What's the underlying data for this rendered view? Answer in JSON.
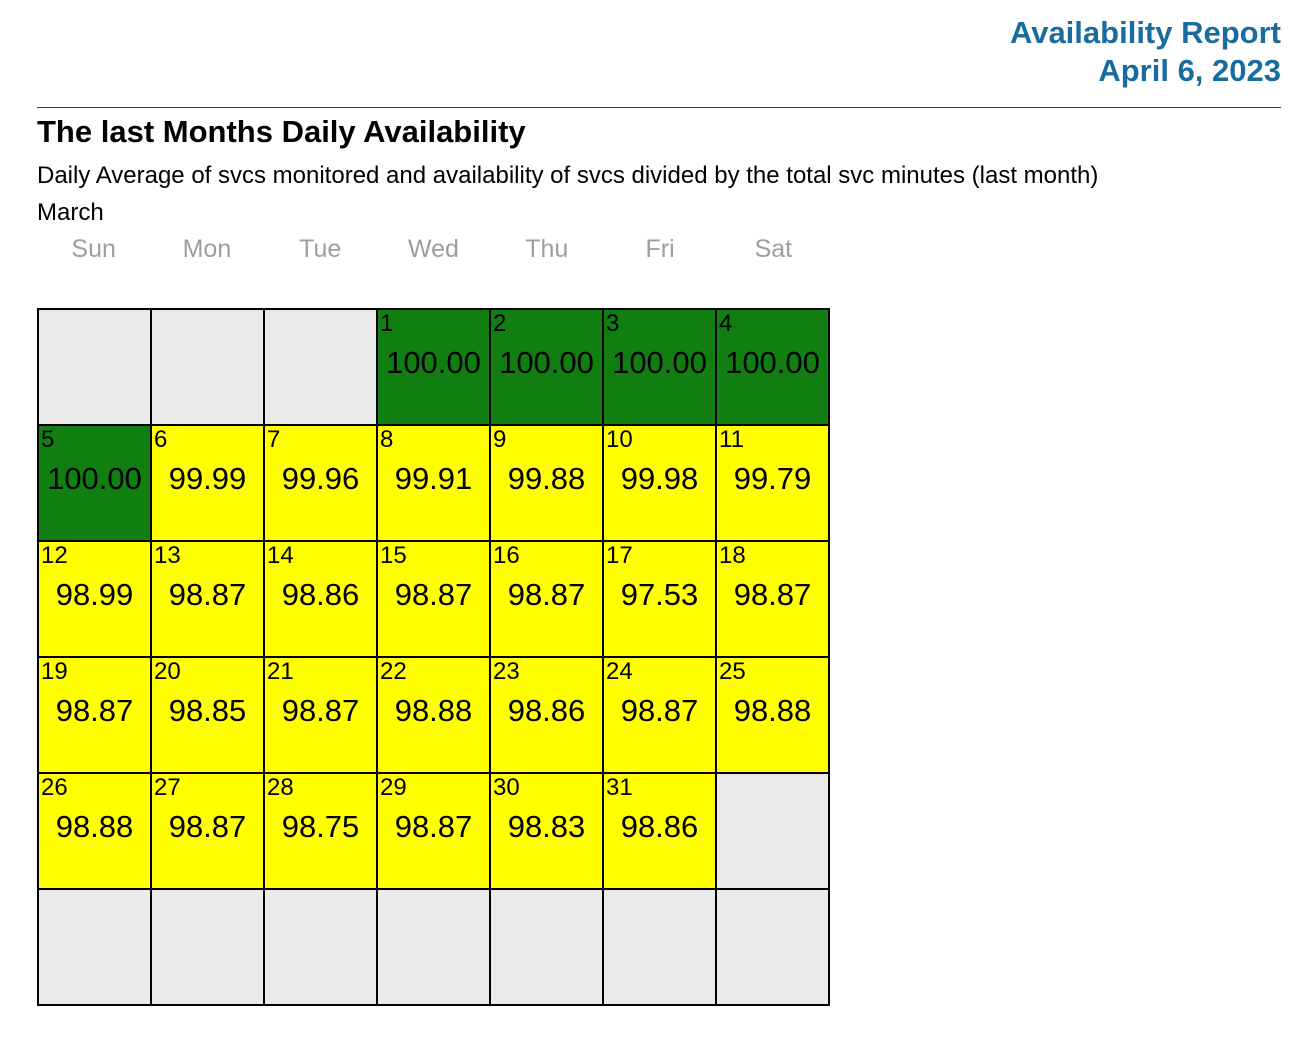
{
  "header": {
    "title": "Availability Report",
    "date": "April 6, 2023",
    "accent_color": "#186C9E"
  },
  "report": {
    "heading": "The last Months Daily Availability",
    "subtitle": "Daily Average of svcs monitored and availability of svcs divided by the total svc minutes (last month)",
    "month_label": "March"
  },
  "calendar": {
    "weekday_headers": [
      "Sun",
      "Mon",
      "Tue",
      "Wed",
      "Thu",
      "Fri",
      "Sat"
    ],
    "colors": {
      "full_day": "#117E11",
      "partial_day": "#FFFF00",
      "empty_cell": "#EAEAEA",
      "grid_border": "#000000",
      "weekday_text": "#9E9E9E"
    },
    "weeks": [
      [
        null,
        null,
        null,
        {
          "day": 1,
          "value": "100.00",
          "status": "full"
        },
        {
          "day": 2,
          "value": "100.00",
          "status": "full"
        },
        {
          "day": 3,
          "value": "100.00",
          "status": "full"
        },
        {
          "day": 4,
          "value": "100.00",
          "status": "full"
        }
      ],
      [
        {
          "day": 5,
          "value": "100.00",
          "status": "full"
        },
        {
          "day": 6,
          "value": "99.99",
          "status": "partial"
        },
        {
          "day": 7,
          "value": "99.96",
          "status": "partial"
        },
        {
          "day": 8,
          "value": "99.91",
          "status": "partial"
        },
        {
          "day": 9,
          "value": "99.88",
          "status": "partial"
        },
        {
          "day": 10,
          "value": "99.98",
          "status": "partial"
        },
        {
          "day": 11,
          "value": "99.79",
          "status": "partial"
        }
      ],
      [
        {
          "day": 12,
          "value": "98.99",
          "status": "partial"
        },
        {
          "day": 13,
          "value": "98.87",
          "status": "partial"
        },
        {
          "day": 14,
          "value": "98.86",
          "status": "partial"
        },
        {
          "day": 15,
          "value": "98.87",
          "status": "partial"
        },
        {
          "day": 16,
          "value": "98.87",
          "status": "partial"
        },
        {
          "day": 17,
          "value": "97.53",
          "status": "partial"
        },
        {
          "day": 18,
          "value": "98.87",
          "status": "partial"
        }
      ],
      [
        {
          "day": 19,
          "value": "98.87",
          "status": "partial"
        },
        {
          "day": 20,
          "value": "98.85",
          "status": "partial"
        },
        {
          "day": 21,
          "value": "98.87",
          "status": "partial"
        },
        {
          "day": 22,
          "value": "98.88",
          "status": "partial"
        },
        {
          "day": 23,
          "value": "98.86",
          "status": "partial"
        },
        {
          "day": 24,
          "value": "98.87",
          "status": "partial"
        },
        {
          "day": 25,
          "value": "98.88",
          "status": "partial"
        }
      ],
      [
        {
          "day": 26,
          "value": "98.88",
          "status": "partial"
        },
        {
          "day": 27,
          "value": "98.87",
          "status": "partial"
        },
        {
          "day": 28,
          "value": "98.75",
          "status": "partial"
        },
        {
          "day": 29,
          "value": "98.87",
          "status": "partial"
        },
        {
          "day": 30,
          "value": "98.83",
          "status": "partial"
        },
        {
          "day": 31,
          "value": "98.86",
          "status": "partial"
        },
        null
      ],
      [
        null,
        null,
        null,
        null,
        null,
        null,
        null
      ]
    ]
  }
}
